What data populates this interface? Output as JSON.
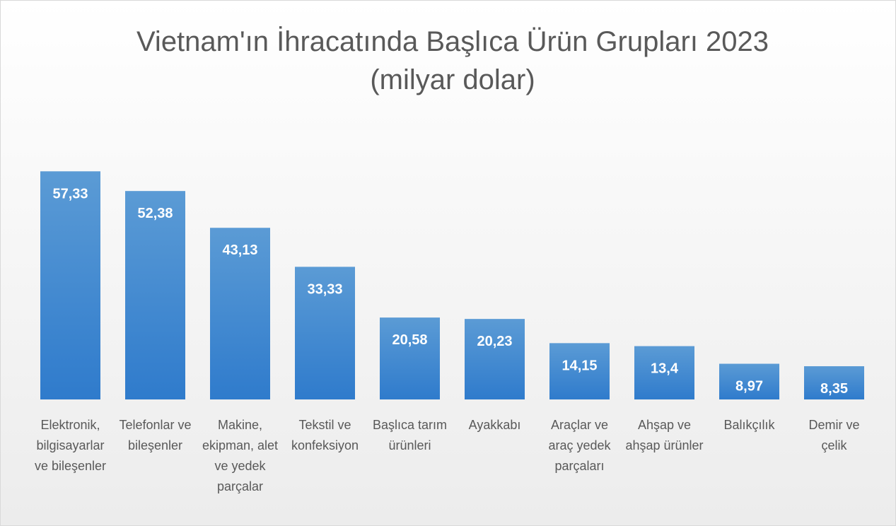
{
  "chart_data": {
    "type": "bar",
    "title": "Vietnam'ın İhracatında Başlıca Ürün Grupları 2023",
    "subtitle": "(milyar dolar)",
    "categories": [
      "Elektronik, bilgisayarlar ve bileşenler",
      "Telefonlar ve bileşenler",
      "Makine, ekipman, alet ve yedek parçalar",
      "Tekstil ve konfeksiyon",
      "Başlıca tarım ürünleri",
      "Ayakkabı",
      "Araçlar ve araç yedek parçaları",
      "Ahşap ve ahşap ürünler",
      "Balıkçılık",
      "Demir ve çelik"
    ],
    "values": [
      57.33,
      52.38,
      43.13,
      33.33,
      20.58,
      20.23,
      14.15,
      13.4,
      8.97,
      8.35
    ],
    "value_labels": [
      "57,33",
      "52,38",
      "43,13",
      "33,33",
      "20,58",
      "20,23",
      "14,15",
      "13,4",
      "8,97",
      "8,35"
    ],
    "color": "#4a8fd4",
    "ylim": [
      0,
      70
    ]
  }
}
